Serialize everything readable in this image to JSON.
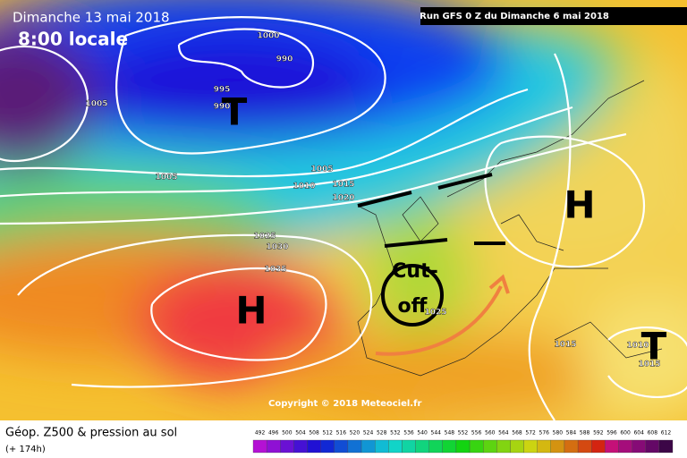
{
  "header": {
    "date": "Dimanche 13 mai 2018",
    "time": "8:00 locale",
    "run": "Run GFS 0 Z du Dimanche 6 mai 2018"
  },
  "copyright": "Copyright © 2018 Meteociel.fr",
  "isobar_labels": [
    "1000",
    "990",
    "995",
    "990",
    "1005",
    "1005",
    "1005",
    "1010",
    "1015",
    "1020",
    "1025",
    "1030",
    "1035",
    "1025",
    "1015",
    "1010",
    "1015"
  ],
  "centers": [
    "T",
    "H",
    "H",
    "T"
  ],
  "annotation": {
    "line1": "Cut-",
    "line2": "off"
  },
  "legend": {
    "title": "Géop. Z500 & pression au sol",
    "lead": "(+ 174h)",
    "scale": [
      "492",
      "496",
      "500",
      "504",
      "508",
      "512",
      "516",
      "520",
      "524",
      "528",
      "532",
      "536",
      "540",
      "544",
      "548",
      "552",
      "556",
      "560",
      "564",
      "568",
      "572",
      "576",
      "580",
      "584",
      "588",
      "592",
      "596",
      "600",
      "604",
      "608",
      "612"
    ]
  }
}
